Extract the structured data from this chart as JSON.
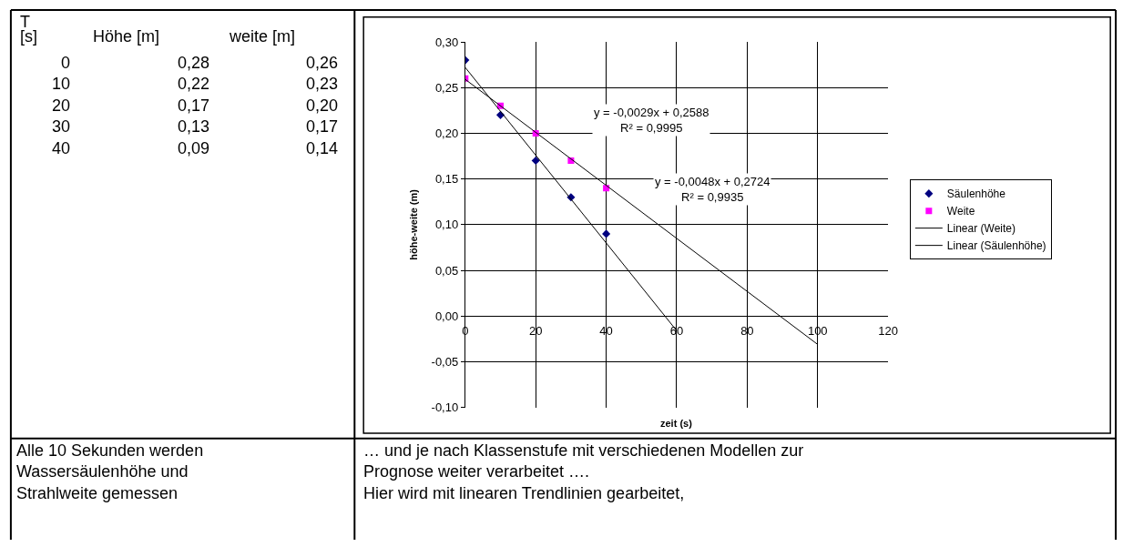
{
  "chart_data": {
    "type": "scatter",
    "xlabel": "zeit (s)",
    "ylabel": "höhe-weite (m)",
    "xlim": [
      0,
      120
    ],
    "ylim": [
      -0.1,
      0.3
    ],
    "xticks": [
      0,
      20,
      40,
      60,
      80,
      100,
      120
    ],
    "yticks": [
      {
        "value": -0.1,
        "label": "-0,10"
      },
      {
        "value": -0.05,
        "label": "-0,05"
      },
      {
        "value": 0,
        "label": "0,00"
      },
      {
        "value": 0.05,
        "label": "0,05"
      },
      {
        "value": 0.1,
        "label": "0,10"
      },
      {
        "value": 0.15,
        "label": "0,15"
      },
      {
        "value": 0.2,
        "label": "0,20"
      },
      {
        "value": 0.25,
        "label": "0,25"
      },
      {
        "value": 0.3,
        "label": "0,30"
      }
    ],
    "grid": true,
    "legend": "right",
    "series": [
      {
        "name": "Säulenhöhe",
        "color": "#000080",
        "marker": "diamond",
        "x": [
          0,
          10,
          20,
          30,
          40
        ],
        "values": [
          0.28,
          0.22,
          0.17,
          0.13,
          0.09
        ]
      },
      {
        "name": "Weite",
        "color": "#ff00ff",
        "marker": "square",
        "x": [
          0,
          10,
          20,
          30,
          40
        ],
        "values": [
          0.26,
          0.23,
          0.2,
          0.17,
          0.14
        ]
      },
      {
        "name": "Linear (Weite)",
        "type": "line",
        "color": "#000000",
        "marker": "none",
        "x": [
          0,
          100
        ],
        "values": [
          0.259,
          -0.031
        ]
      },
      {
        "name": "Linear (Säulenhöhe)",
        "type": "line",
        "color": "#000000",
        "marker": "none",
        "x": [
          0,
          60
        ],
        "values": [
          0.272,
          -0.016
        ]
      }
    ],
    "annotations": [
      "T",
      "[s]",
      "Höhe [m]",
      "weite [m]",
      "0\n10\n20\n30\n40",
      "0,28\n0,22\n0,17\n0,13\n0,09",
      "0,26\n0,23\n0,20\n0,17\n0,14",
      "Alle 10 Sekunden werden\nWassersäulenhöhe und\nStrahlweite gemessen",
      "… und je nach Klassenstufe mit verschiedenen Modellen zur\nPrognose weiter verarbeitet ….\nHier wird mit linearen Trendlinien gearbeitet,",
      "y = -0,0029x + 0,2588\nR² = 0,9995",
      "y = -0,0048x + 0,2724\nR² = 0,9935"
    ]
  }
}
